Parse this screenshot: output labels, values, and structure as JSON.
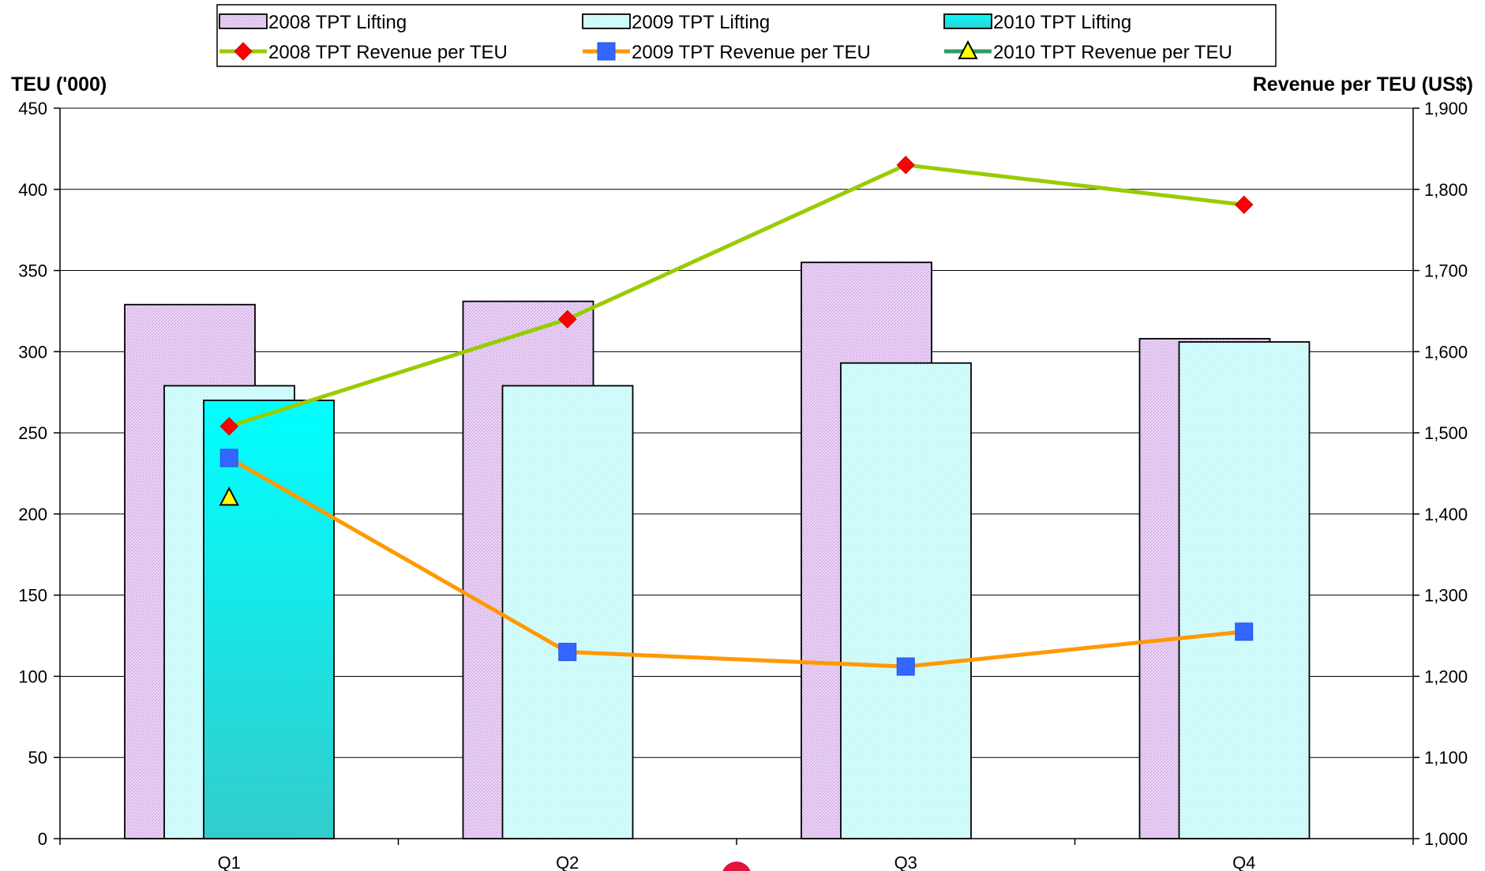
{
  "chart_data": {
    "type": "bar",
    "categories": [
      "Q1",
      "Q2",
      "Q3",
      "Q4"
    ],
    "y_left": {
      "label": "TEU ('000)",
      "range": [
        0,
        450
      ],
      "ticks": [
        0,
        50,
        100,
        150,
        200,
        250,
        300,
        350,
        400,
        450
      ],
      "tick_labels": [
        "0",
        "50",
        "100",
        "150",
        "200",
        "250",
        "300",
        "350",
        "400",
        "450"
      ]
    },
    "y_right": {
      "label": "Revenue per TEU (US$)",
      "range": [
        1000,
        1900
      ],
      "ticks": [
        1000,
        1100,
        1200,
        1300,
        1400,
        1500,
        1600,
        1700,
        1800,
        1900
      ],
      "tick_labels": [
        "1,000",
        "1,100",
        "1,200",
        "1,300",
        "1,400",
        "1,500",
        "1,600",
        "1,700",
        "1,800",
        "1,900"
      ]
    },
    "bar_series": [
      {
        "name": "2008 TPT Lifting",
        "values": [
          329,
          331,
          355,
          308
        ],
        "color": "#e3c9f0",
        "style": "hatched"
      },
      {
        "name": "2009 TPT Lifting",
        "values": [
          279,
          279,
          293,
          306
        ],
        "color": "#ccffff",
        "style": "hatched"
      },
      {
        "name": "2010 TPT Lifting",
        "values": [
          270,
          null,
          null,
          null
        ],
        "color": "#00ffff",
        "style": "gradient"
      }
    ],
    "line_series": [
      {
        "name": "2008 TPT Revenue per TEU",
        "values": [
          1508,
          1640,
          1830,
          1781
        ],
        "line_color": "#99cc00",
        "marker": "diamond",
        "marker_color": "#ff0000"
      },
      {
        "name": "2009 TPT Revenue per TEU",
        "values": [
          1469,
          1230,
          1212,
          1255
        ],
        "line_color": "#ff9900",
        "marker": "square",
        "marker_color": "#3366ff"
      },
      {
        "name": "2010 TPT Revenue per TEU",
        "values": [
          1420,
          null,
          null,
          null
        ],
        "line_color": "#339966",
        "marker": "triangle",
        "marker_color": "#ffff00"
      }
    ],
    "grid": true,
    "legend_position": "top"
  }
}
